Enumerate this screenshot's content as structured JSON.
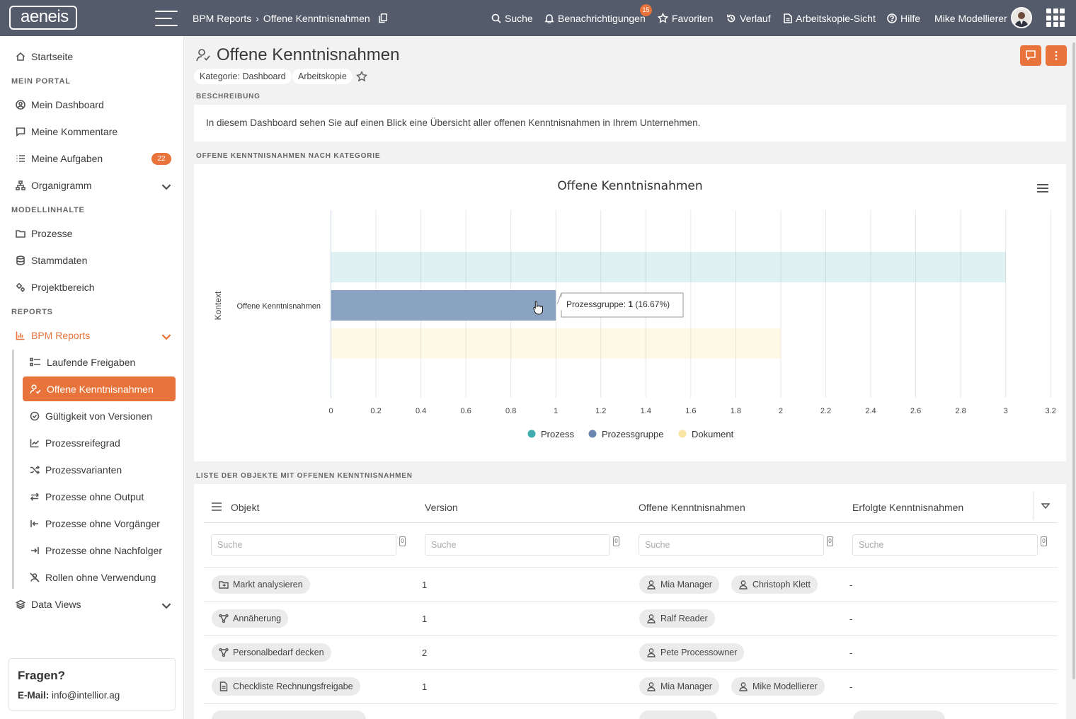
{
  "app": {
    "logo": "aeneis"
  },
  "header": {
    "breadcrumb": [
      "BPM Reports",
      "Offene Kenntnisnahmen"
    ],
    "nav": {
      "search": "Suche",
      "notifications": "Benachrichtigungen",
      "notifications_count": "15",
      "favorites": "Favoriten",
      "history": "Verlauf",
      "working_copy": "Arbeitskopie-Sicht",
      "help": "Hilfe",
      "user": "Mike Modellierer"
    }
  },
  "sidebar": {
    "home": "Startseite",
    "section_portal": "MEIN PORTAL",
    "dashboard": "Mein Dashboard",
    "comments": "Meine Kommentare",
    "tasks": "Meine Aufgaben",
    "tasks_count": "22",
    "orgchart": "Organigramm",
    "section_model": "MODELLINHALTE",
    "processes": "Prozesse",
    "masterdata": "Stammdaten",
    "project": "Projektbereich",
    "section_reports": "REPORTS",
    "bpm_reports": "BPM Reports",
    "sub": [
      "Laufende Freigaben",
      "Offene Kenntnisnahmen",
      "Gültigkeit von Versionen",
      "Prozessreifegrad",
      "Prozessvarianten",
      "Prozesse ohne Output",
      "Prozesse ohne Vorgänger",
      "Prozesse ohne Nachfolger",
      "Rollen ohne Verwendung"
    ],
    "data_views": "Data Views",
    "help_title": "Fragen?",
    "help_email_label": "E-Mail:",
    "help_email": "info@intellior.ag"
  },
  "page": {
    "title": "Offene Kenntnisnahmen",
    "tags": [
      "Kategorie: Dashboard",
      "Arbeitskopie"
    ],
    "desc_label": "BESCHREIBUNG",
    "description": "In diesem Dashboard sehen Sie auf einen Blick eine Übersicht aller offenen Kenntnisnahmen in Ihrem Unternehmen.",
    "chart_label": "OFFENE KENNTNISNAHMEN NACH KATEGORIE",
    "list_label": "LISTE DER OBJEKTE MIT OFFENEN KENNTNISNAHMEN"
  },
  "chart_data": {
    "type": "bar",
    "orientation": "horizontal",
    "title": "Offene Kenntnisnahmen",
    "ylabel": "Kontext",
    "categories": [
      "Offene Kenntnisnahmen"
    ],
    "series": [
      {
        "name": "Prozess",
        "values": [
          3
        ],
        "color": "#2ba3a6"
      },
      {
        "name": "Prozessgruppe",
        "values": [
          1
        ],
        "color": "#5b7aa6"
      },
      {
        "name": "Dokument",
        "values": [
          2
        ],
        "color": "#f5cf5a"
      }
    ],
    "xlim": [
      0,
      3.2
    ],
    "xticks": [
      "0",
      "0.2",
      "0.4",
      "0.6",
      "0.8",
      "1",
      "1.2",
      "1.4",
      "1.6",
      "1.8",
      "2",
      "2.2",
      "2.4",
      "2.6",
      "2.8",
      "3",
      "3.2"
    ],
    "highlighted_series": "Prozessgruppe",
    "tooltip": {
      "label": "Prozessgruppe: ",
      "value": "1",
      "pct": " (16.67%)"
    },
    "legend": "bottom"
  },
  "table": {
    "columns": [
      "Objekt",
      "Version",
      "Offene Kenntnisnahmen",
      "Erfolgte Kenntnisnahmen"
    ],
    "search_placeholder": "Suche",
    "lock_glyph": "0",
    "rows": [
      {
        "object": "Markt analysieren",
        "version": "1",
        "open": [
          "Mia Manager",
          "Christoph Klett"
        ],
        "done": "-"
      },
      {
        "object": "Annäherung",
        "version": "1",
        "open": [
          "Ralf Reader"
        ],
        "done": "-"
      },
      {
        "object": "Personalbedarf decken",
        "version": "2",
        "open": [
          "Pete Processowner"
        ],
        "done": "-"
      },
      {
        "object": "Checkliste Rechnungsfreigabe",
        "version": "1",
        "open": [
          "Mia Manager",
          "Mike Modellierer"
        ],
        "done": "-"
      }
    ]
  }
}
